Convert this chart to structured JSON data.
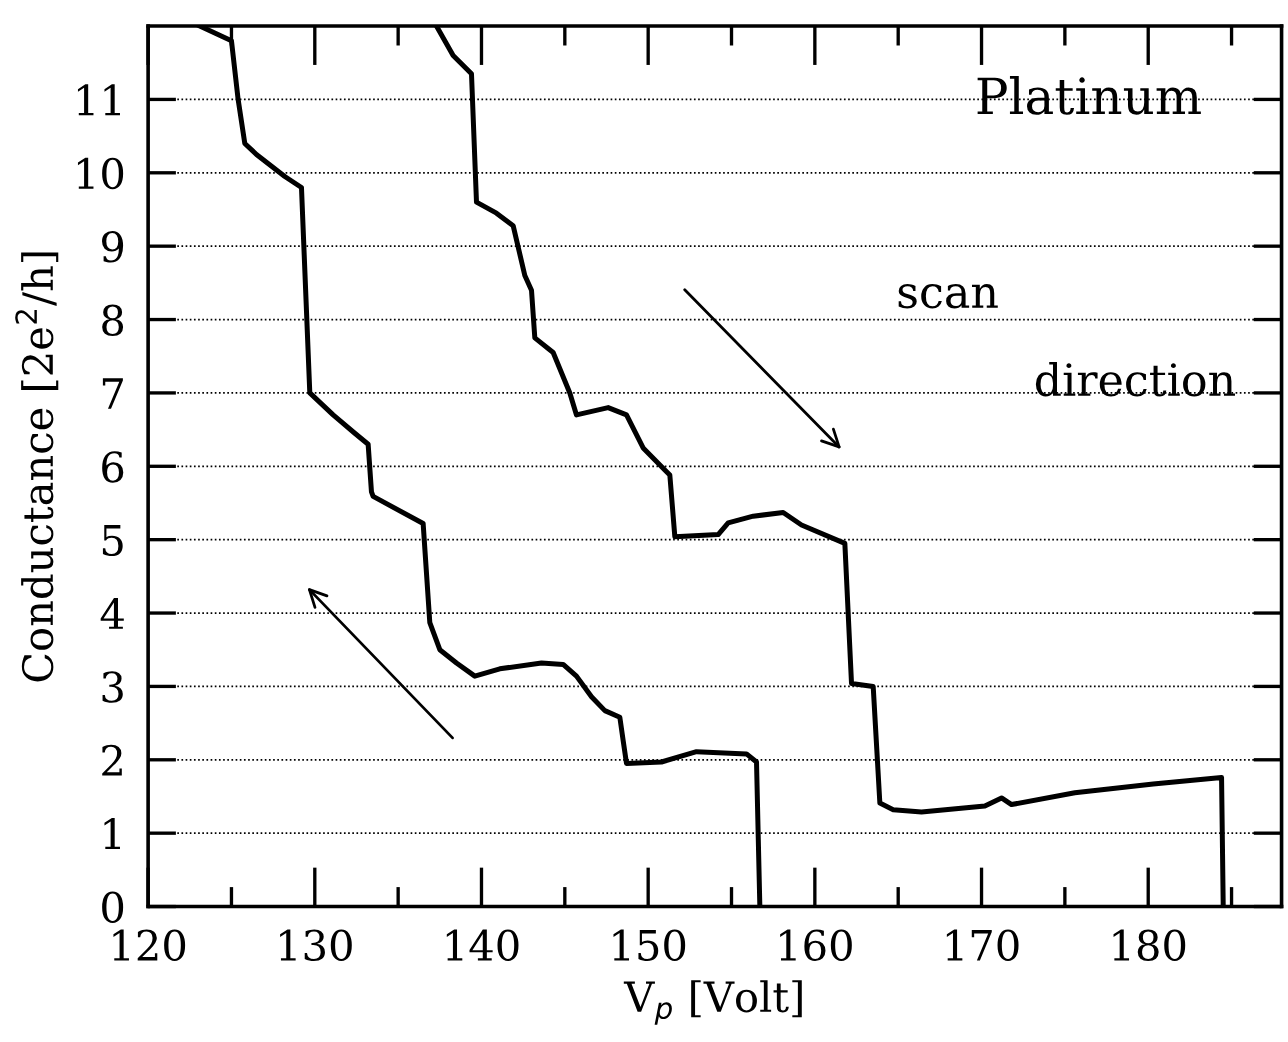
{
  "chart_data": {
    "type": "line",
    "xlabel": "V$_{p}$ [Volt]",
    "ylabel": "Conductance [2e$^{2}$/h]",
    "annotations": [
      "Platinum",
      "scan direction"
    ],
    "xlim": [
      120,
      188
    ],
    "ylim": [
      0,
      12
    ],
    "xticks": [
      120,
      {
        "value": 125,
        "label": null
      },
      130,
      {
        "value": 135,
        "label": null
      },
      140,
      {
        "value": 145,
        "label": null
      },
      150,
      {
        "value": 155,
        "label": null
      },
      160,
      {
        "value": 165,
        "label": null
      },
      170,
      {
        "value": 175,
        "label": null
      },
      180,
      {
        "value": 185,
        "label": null
      }
    ],
    "yticks": [
      0,
      1,
      2,
      3,
      4,
      5,
      6,
      7,
      8,
      9,
      10,
      11
    ],
    "grid": "y",
    "marker": "none",
    "line_style": "solid",
    "legend": false,
    "series": [
      {
        "color": "#000000",
        "x": [
          123.1,
          125.0,
          125.4,
          125.8,
          126.5,
          128.2,
          129.2,
          129.7,
          131.1,
          132.4,
          133.2,
          133.4,
          133.5,
          136.5,
          136.9,
          137.5,
          138.5,
          139.6,
          141.1,
          143.6,
          144.9,
          145.7,
          146.6,
          147.4,
          148.3,
          148.5,
          148.7,
          150.8,
          152.9,
          155.9,
          156.5,
          156.7
        ],
        "values": [
          12.0,
          11.8,
          11.0,
          10.4,
          10.25,
          9.95,
          9.8,
          7.0,
          6.7,
          6.45,
          6.3,
          5.65,
          5.59,
          5.22,
          3.87,
          3.5,
          3.32,
          3.14,
          3.24,
          3.32,
          3.3,
          3.14,
          2.86,
          2.67,
          2.58,
          2.26,
          1.95,
          1.97,
          2.11,
          2.08,
          1.97,
          0
        ]
      },
      {
        "color": "#000000",
        "x": [
          137.3,
          138.3,
          139.4,
          139.7,
          140.9,
          141.9,
          142.6,
          143.0,
          143.2,
          144.3,
          145.3,
          145.7,
          147.6,
          148.7,
          149.7,
          151.0,
          151.3,
          151.6,
          154.2,
          154.8,
          156.3,
          158.1,
          159.2,
          161.8,
          162.2,
          163.5,
          163.9,
          164.7,
          166.4,
          170.2,
          171.2,
          171.8,
          175.6,
          180.3,
          184.4,
          184.5
        ],
        "values": [
          12.0,
          11.6,
          11.35,
          9.6,
          9.45,
          9.28,
          8.6,
          8.4,
          7.75,
          7.55,
          7.0,
          6.7,
          6.8,
          6.7,
          6.25,
          5.95,
          5.88,
          5.04,
          5.07,
          5.23,
          5.32,
          5.37,
          5.2,
          4.95,
          3.04,
          3.0,
          1.41,
          1.32,
          1.29,
          1.37,
          1.48,
          1.39,
          1.55,
          1.67,
          1.76,
          0
        ]
      }
    ]
  }
}
